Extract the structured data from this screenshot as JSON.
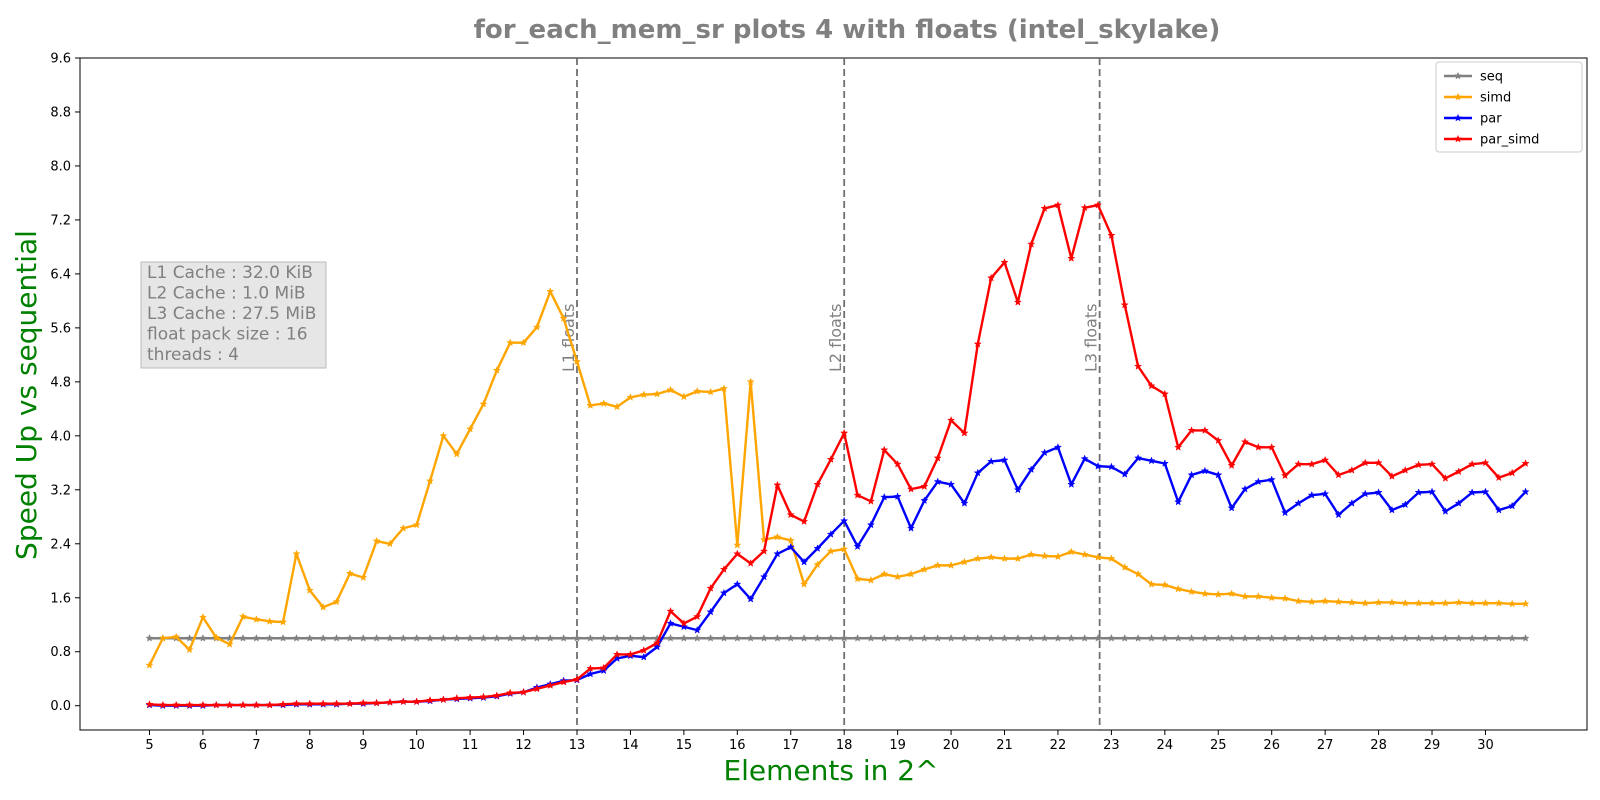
{
  "chart_data": {
    "type": "line",
    "title": "for_each_mem_sr plots 4 with floats  (intel_skylake)",
    "xlabel": "Elements in 2^",
    "ylabel": "Speed Up vs sequential",
    "xlim": [
      3.7,
      31.9
    ],
    "ylim": [
      -0.36,
      9.6
    ],
    "xticks": [
      5,
      6,
      7,
      8,
      9,
      10,
      11,
      12,
      13,
      14,
      15,
      16,
      17,
      18,
      19,
      20,
      21,
      22,
      23,
      24,
      25,
      26,
      27,
      28,
      29,
      30
    ],
    "yticks": [
      0.0,
      0.8,
      1.6,
      2.4,
      3.2,
      4.0,
      4.8,
      5.6,
      6.4,
      7.2,
      8.0,
      8.8,
      9.6
    ],
    "x": [
      5.0,
      5.25,
      5.5,
      5.75,
      6.0,
      6.25,
      6.5,
      6.75,
      7.0,
      7.25,
      7.5,
      7.75,
      8.0,
      8.25,
      8.5,
      8.75,
      9.0,
      9.25,
      9.5,
      9.75,
      10.0,
      10.25,
      10.5,
      10.75,
      11.0,
      11.25,
      11.5,
      11.75,
      12.0,
      12.25,
      12.5,
      12.75,
      13.0,
      13.25,
      13.5,
      13.75,
      14.0,
      14.25,
      14.5,
      14.75,
      15.0,
      15.25,
      15.5,
      15.75,
      16.0,
      16.25,
      16.5,
      16.75,
      17.0,
      17.25,
      17.5,
      17.75,
      18.0,
      18.25,
      18.5,
      18.75,
      19.0,
      19.25,
      19.5,
      19.75,
      20.0,
      20.25,
      20.5,
      20.75,
      21.0,
      21.25,
      21.5,
      21.75,
      22.0,
      22.25,
      22.5,
      22.75,
      23.0,
      23.25,
      23.5,
      23.75,
      24.0,
      24.25,
      24.5,
      24.75,
      25.0,
      25.25,
      25.5,
      25.75,
      26.0,
      26.25,
      26.5,
      26.75,
      27.0,
      27.25,
      27.5,
      27.75,
      28.0,
      28.25,
      28.5,
      28.75,
      29.0,
      29.25,
      29.5,
      29.75,
      30.0,
      30.25,
      30.5,
      30.75
    ],
    "series": [
      {
        "name": "seq",
        "color": "#808080",
        "values": [
          1.0,
          1.0,
          1.0,
          1.0,
          1.0,
          1.0,
          1.0,
          1.0,
          1.0,
          1.0,
          1.0,
          1.0,
          1.0,
          1.0,
          1.0,
          1.0,
          1.0,
          1.0,
          1.0,
          1.0,
          1.0,
          1.0,
          1.0,
          1.0,
          1.0,
          1.0,
          1.0,
          1.0,
          1.0,
          1.0,
          1.0,
          1.0,
          1.0,
          1.0,
          1.0,
          1.0,
          1.0,
          1.0,
          1.0,
          1.0,
          1.0,
          1.0,
          1.0,
          1.0,
          1.0,
          1.0,
          1.0,
          1.0,
          1.0,
          1.0,
          1.0,
          1.0,
          1.0,
          1.0,
          1.0,
          1.0,
          1.0,
          1.0,
          1.0,
          1.0,
          1.0,
          1.0,
          1.0,
          1.0,
          1.0,
          1.0,
          1.0,
          1.0,
          1.0,
          1.0,
          1.0,
          1.0,
          1.0,
          1.0,
          1.0,
          1.0,
          1.0,
          1.0,
          1.0,
          1.0,
          1.0,
          1.0,
          1.0,
          1.0,
          1.0,
          1.0,
          1.0,
          1.0,
          1.0,
          1.0,
          1.0,
          1.0,
          1.0,
          1.0,
          1.0,
          1.0,
          1.0,
          1.0,
          1.0,
          1.0,
          1.0,
          1.0,
          1.0,
          1.0
        ]
      },
      {
        "name": "simd",
        "color": "#ffa500",
        "values": [
          0.6,
          1.0,
          1.02,
          0.83,
          1.31,
          1.01,
          0.91,
          1.32,
          1.28,
          1.25,
          1.24,
          2.25,
          1.71,
          1.46,
          1.54,
          1.96,
          1.9,
          2.44,
          2.4,
          2.63,
          2.68,
          3.33,
          4.0,
          3.73,
          4.1,
          4.47,
          4.97,
          5.38,
          5.38,
          5.61,
          6.14,
          5.74,
          5.1,
          4.45,
          4.48,
          4.43,
          4.57,
          4.61,
          4.62,
          4.68,
          4.58,
          4.66,
          4.65,
          4.7,
          2.38,
          4.8,
          2.46,
          2.5,
          2.45,
          1.8,
          2.09,
          2.29,
          2.32,
          1.88,
          1.86,
          1.95,
          1.91,
          1.95,
          2.02,
          2.08,
          2.08,
          2.13,
          2.18,
          2.2,
          2.18,
          2.18,
          2.24,
          2.22,
          2.21,
          2.28,
          2.24,
          2.2,
          2.18,
          2.05,
          1.95,
          1.8,
          1.79,
          1.73,
          1.69,
          1.66,
          1.65,
          1.66,
          1.62,
          1.62,
          1.6,
          1.59,
          1.55,
          1.54,
          1.55,
          1.54,
          1.53,
          1.52,
          1.53,
          1.53,
          1.52,
          1.52,
          1.52,
          1.52,
          1.53,
          1.52,
          1.52,
          1.52,
          1.51,
          1.51
        ]
      },
      {
        "name": "par",
        "color": "#0000ff",
        "values": [
          0.01,
          0.0,
          0.0,
          0.0,
          0.0,
          0.01,
          0.01,
          0.01,
          0.01,
          0.01,
          0.01,
          0.02,
          0.02,
          0.02,
          0.02,
          0.03,
          0.03,
          0.04,
          0.05,
          0.06,
          0.06,
          0.07,
          0.09,
          0.1,
          0.11,
          0.12,
          0.14,
          0.18,
          0.2,
          0.27,
          0.32,
          0.37,
          0.38,
          0.47,
          0.52,
          0.7,
          0.74,
          0.72,
          0.87,
          1.22,
          1.17,
          1.12,
          1.39,
          1.67,
          1.8,
          1.58,
          1.91,
          2.25,
          2.35,
          2.13,
          2.33,
          2.54,
          2.74,
          2.36,
          2.68,
          3.09,
          3.1,
          2.63,
          3.04,
          3.32,
          3.28,
          3.0,
          3.45,
          3.62,
          3.64,
          3.2,
          3.5,
          3.75,
          3.83,
          3.28,
          3.66,
          3.55,
          3.54,
          3.43,
          3.67,
          3.63,
          3.59,
          3.02,
          3.42,
          3.48,
          3.42,
          2.93,
          3.21,
          3.32,
          3.35,
          2.86,
          3.0,
          3.12,
          3.14,
          2.83,
          3.0,
          3.14,
          3.16,
          2.9,
          2.98,
          3.16,
          3.17,
          2.88,
          3.0,
          3.16,
          3.17,
          2.9,
          2.96,
          3.17
        ]
      },
      {
        "name": "par_simd",
        "color": "#ff0000",
        "values": [
          0.02,
          0.01,
          0.01,
          0.01,
          0.01,
          0.01,
          0.01,
          0.01,
          0.01,
          0.01,
          0.02,
          0.03,
          0.03,
          0.03,
          0.03,
          0.03,
          0.04,
          0.04,
          0.05,
          0.06,
          0.06,
          0.08,
          0.09,
          0.11,
          0.12,
          0.13,
          0.15,
          0.19,
          0.2,
          0.25,
          0.3,
          0.35,
          0.39,
          0.55,
          0.56,
          0.76,
          0.76,
          0.82,
          0.93,
          1.4,
          1.22,
          1.32,
          1.74,
          2.02,
          2.25,
          2.11,
          2.29,
          3.27,
          2.83,
          2.73,
          3.28,
          3.65,
          4.04,
          3.12,
          3.03,
          3.79,
          3.58,
          3.21,
          3.25,
          3.67,
          4.23,
          4.04,
          5.36,
          6.34,
          6.57,
          5.98,
          6.84,
          7.37,
          7.42,
          6.63,
          7.38,
          7.42,
          6.97,
          5.94,
          5.03,
          4.74,
          4.62,
          3.83,
          4.08,
          4.08,
          3.93,
          3.56,
          3.91,
          3.83,
          3.83,
          3.41,
          3.58,
          3.58,
          3.64,
          3.42,
          3.49,
          3.6,
          3.6,
          3.4,
          3.49,
          3.57,
          3.58,
          3.37,
          3.47,
          3.58,
          3.6,
          3.38,
          3.45,
          3.59
        ]
      }
    ],
    "vlines": [
      {
        "x": 13.0,
        "label": "L1 floats"
      },
      {
        "x": 18.0,
        "label": "L2 floats"
      },
      {
        "x": 22.78,
        "label": "L3 floats"
      }
    ],
    "legend_position": "top-right",
    "grid": false,
    "info_box": [
      "L1 Cache : 32.0 KiB",
      "L2 Cache : 1.0 MiB",
      "L3 Cache : 27.5 MiB",
      "float pack size : 16",
      "threads : 4"
    ]
  }
}
